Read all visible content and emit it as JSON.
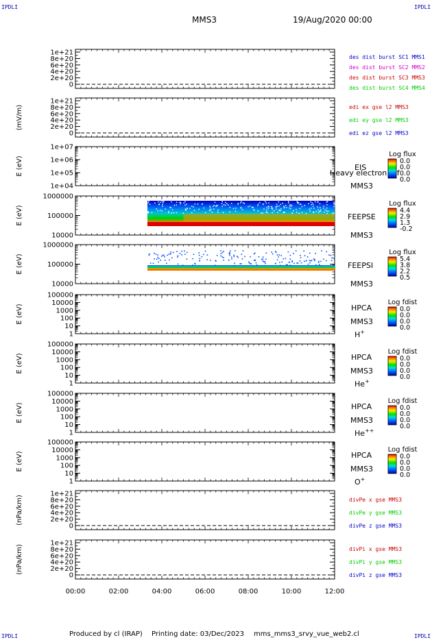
{
  "corner_tag": "IPDLI",
  "header": {
    "spacecraft": "MMS3",
    "date": "19/Aug/2020 00:00"
  },
  "footer": {
    "produced_by": "Produced by cl (IRAP)",
    "printing_date": "Printing date: 03/Dec/2023",
    "filename": "mms_mms3_srvy_vue_web2.cl"
  },
  "colors": {
    "red": "#cc0000",
    "green": "#00cc00",
    "blue": "#0000cc",
    "magenta": "#cc00cc"
  },
  "chart_data": {
    "type": "stacked-timeseries",
    "time_axis": {
      "range": [
        "00:00",
        "12:00"
      ],
      "ticks": [
        "00:00",
        "02:00",
        "04:00",
        "06:00",
        "08:00",
        "10:00",
        "12:00"
      ]
    },
    "panels": [
      {
        "kind": "line",
        "ylabel": "",
        "ytick_labels": [
          "1e+21",
          "8e+20",
          "6e+20",
          "4e+20",
          "2e+20",
          "0"
        ],
        "legend": [
          {
            "text": "des dist burst SC1 MMS1",
            "color": "blue"
          },
          {
            "text": "des dist burst SC2 MMS2",
            "color": "magenta"
          },
          {
            "text": "des dist burst SC3 MMS3",
            "color": "red"
          },
          {
            "text": "des dist burst SC4 MMS4",
            "color": "green"
          }
        ]
      },
      {
        "kind": "line",
        "ylabel": "(mV/m)",
        "ytick_labels": [
          "1e+21",
          "8e+20",
          "6e+20",
          "4e+20",
          "2e+20",
          "0"
        ],
        "legend": [
          {
            "text": "edi ex gse l2 MMS3",
            "color": "red"
          },
          {
            "text": "edi ey gse l2 MMS3",
            "color": "green"
          },
          {
            "text": "edi ez gse l2 MMS3",
            "color": "blue"
          }
        ]
      },
      {
        "kind": "spec",
        "ylabel": "E (eV)",
        "ytick_labels": [
          "1e+07",
          "1e+06",
          "1e+05",
          "1e+04"
        ],
        "labels": [
          "EIS",
          "Heavy electron tof",
          "MMS3"
        ],
        "cbar_title": "Log flux",
        "cbar_ticks": [
          "0.0",
          "0.0",
          "0.0",
          "0.0"
        ],
        "data": "none"
      },
      {
        "kind": "spec",
        "ylabel": "E (eV)",
        "ytick_labels": [
          "1000000",
          "100000",
          "10000"
        ],
        "labels": [
          "FEEPSE",
          "MMS3"
        ],
        "cbar_title": "Log flux",
        "cbar_ticks": [
          "4.4",
          "2.9",
          "1.3",
          "-0.2"
        ],
        "data": "electron",
        "coverage": [
          "03:20",
          "12:00"
        ]
      },
      {
        "kind": "spec",
        "ylabel": "E (eV)",
        "ytick_labels": [
          "1000000",
          "100000",
          "10000"
        ],
        "labels": [
          "FEEPSI",
          "MMS3"
        ],
        "cbar_title": "Log flux",
        "cbar_ticks": [
          "5.4",
          "3.8",
          "2.2",
          "0.5"
        ],
        "data": "ion",
        "coverage": [
          "03:20",
          "12:00"
        ]
      },
      {
        "kind": "spec",
        "ylabel": "E (eV)",
        "ytick_labels": [
          "100000",
          "10000",
          "1000",
          "100",
          "10",
          "1"
        ],
        "labels": [
          "HPCA",
          "MMS3"
        ],
        "species": "H",
        "species_sup": "+",
        "cbar_title": "Log fdist",
        "cbar_ticks": [
          "0.0",
          "0.0",
          "0.0",
          "0.0"
        ],
        "data": "none"
      },
      {
        "kind": "spec",
        "ylabel": "E (eV)",
        "ytick_labels": [
          "100000",
          "10000",
          "1000",
          "100",
          "10",
          "1"
        ],
        "labels": [
          "HPCA",
          "MMS3"
        ],
        "species": "He",
        "species_sup": "+",
        "cbar_title": "Log fdist",
        "cbar_ticks": [
          "0.0",
          "0.0",
          "0.0",
          "0.0"
        ],
        "data": "none"
      },
      {
        "kind": "spec",
        "ylabel": "E (eV)",
        "ytick_labels": [
          "100000",
          "10000",
          "1000",
          "100",
          "10",
          "1"
        ],
        "labels": [
          "HPCA",
          "MMS3"
        ],
        "species": "He",
        "species_sup": "++",
        "cbar_title": "Log fdist",
        "cbar_ticks": [
          "0.0",
          "0.0",
          "0.0",
          "0.0"
        ],
        "data": "none"
      },
      {
        "kind": "spec",
        "ylabel": "E (eV)",
        "ytick_labels": [
          "100000",
          "10000",
          "1000",
          "100",
          "10",
          "1"
        ],
        "labels": [
          "HPCA",
          "MMS3"
        ],
        "species": "O",
        "species_sup": "+",
        "cbar_title": "Log fdist",
        "cbar_ticks": [
          "0.0",
          "0.0",
          "0.0",
          "0.0"
        ],
        "data": "none"
      },
      {
        "kind": "line",
        "ylabel": "(nPa/km)",
        "ytick_labels": [
          "1e+21",
          "8e+20",
          "6e+20",
          "4e+20",
          "2e+20",
          "0"
        ],
        "legend": [
          {
            "text": "divPe x gse MMS3",
            "color": "red"
          },
          {
            "text": "divPe y gse MMS3",
            "color": "green"
          },
          {
            "text": "divPe z gse MMS3",
            "color": "blue"
          }
        ]
      },
      {
        "kind": "line",
        "ylabel": "(nPa/km)",
        "ytick_labels": [
          "1e+21",
          "8e+20",
          "6e+20",
          "4e+20",
          "2e+20",
          "0"
        ],
        "legend": [
          {
            "text": "divPi x gse MMS3",
            "color": "red"
          },
          {
            "text": "divPi y gse MMS3",
            "color": "green"
          },
          {
            "text": "divPi z gse MMS3",
            "color": "blue"
          }
        ]
      }
    ]
  }
}
